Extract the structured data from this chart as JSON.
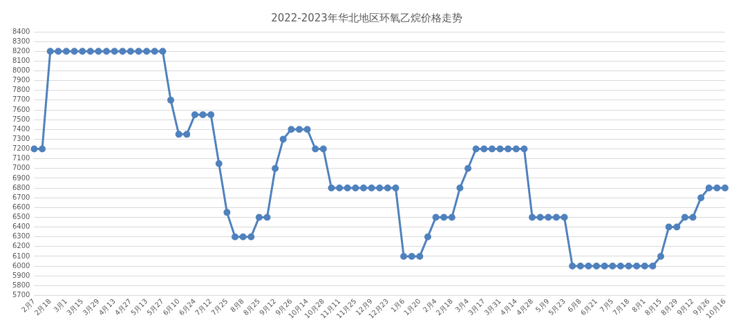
{
  "chart_data": {
    "type": "line",
    "title": "2022-2023年华北地区环氧乙烷价格走势",
    "categories": [
      "2月7",
      null,
      "2月18",
      null,
      "3月1",
      null,
      "3月15",
      null,
      "3月29",
      null,
      "4月13",
      null,
      "4月27",
      null,
      "5月13",
      null,
      "5月27",
      null,
      "6月10",
      null,
      "6月24",
      null,
      "7月12",
      null,
      "7月25",
      null,
      "8月8",
      null,
      "8月25",
      null,
      "9月12",
      null,
      "9月26",
      null,
      "10月14",
      null,
      "10月28",
      null,
      "11月11",
      null,
      "11月25",
      null,
      "12月9",
      null,
      "12月23",
      null,
      "1月6",
      null,
      "1月20",
      null,
      "2月4",
      null,
      "2月18",
      null,
      "3月4",
      null,
      "3月17",
      null,
      "3月31",
      null,
      "4月14",
      null,
      "4月28",
      null,
      "5月9",
      null,
      "5月23",
      null,
      "6月8",
      null,
      "6月21",
      null,
      "7月5",
      null,
      "7月18",
      null,
      "8月1",
      null,
      "8月15",
      null,
      "8月29",
      null,
      "9月12",
      null,
      "9月26",
      null,
      "10月16"
    ],
    "series": [
      {
        "color": "#4f81bd",
        "values": [
          7200,
          7200,
          8200,
          8200,
          8200,
          8200,
          8200,
          8200,
          8200,
          8200,
          8200,
          8200,
          8200,
          8200,
          8200,
          8200,
          8200,
          7700,
          7350,
          7350,
          7550,
          7550,
          7550,
          7050,
          6550,
          6300,
          6300,
          6300,
          6500,
          6500,
          7000,
          7300,
          7400,
          7400,
          7400,
          7200,
          7200,
          6800,
          6800,
          6800,
          6800,
          6800,
          6800,
          6800,
          6800,
          6800,
          6100,
          6100,
          6100,
          6300,
          6500,
          6500,
          6500,
          6800,
          7000,
          7200,
          7200,
          7200,
          7200,
          7200,
          7200,
          7200,
          6500,
          6500,
          6500,
          6500,
          6500,
          6000,
          6000,
          6000,
          6000,
          6000,
          6000,
          6000,
          6000,
          6000,
          6000,
          6000,
          6100,
          6400,
          6400,
          6500,
          6500,
          6700,
          6800,
          6800,
          6800
        ]
      }
    ],
    "ylim": [
      5700,
      8400
    ],
    "yticks": [
      5700,
      5800,
      5900,
      6000,
      6100,
      6200,
      6300,
      6400,
      6500,
      6600,
      6700,
      6800,
      6900,
      7000,
      7100,
      7200,
      7300,
      7400,
      7500,
      7600,
      7700,
      7800,
      7900,
      8000,
      8100,
      8200,
      8300,
      8400
    ],
    "grid": "y",
    "legend": false,
    "marker": "circle",
    "line_style": "solid"
  }
}
